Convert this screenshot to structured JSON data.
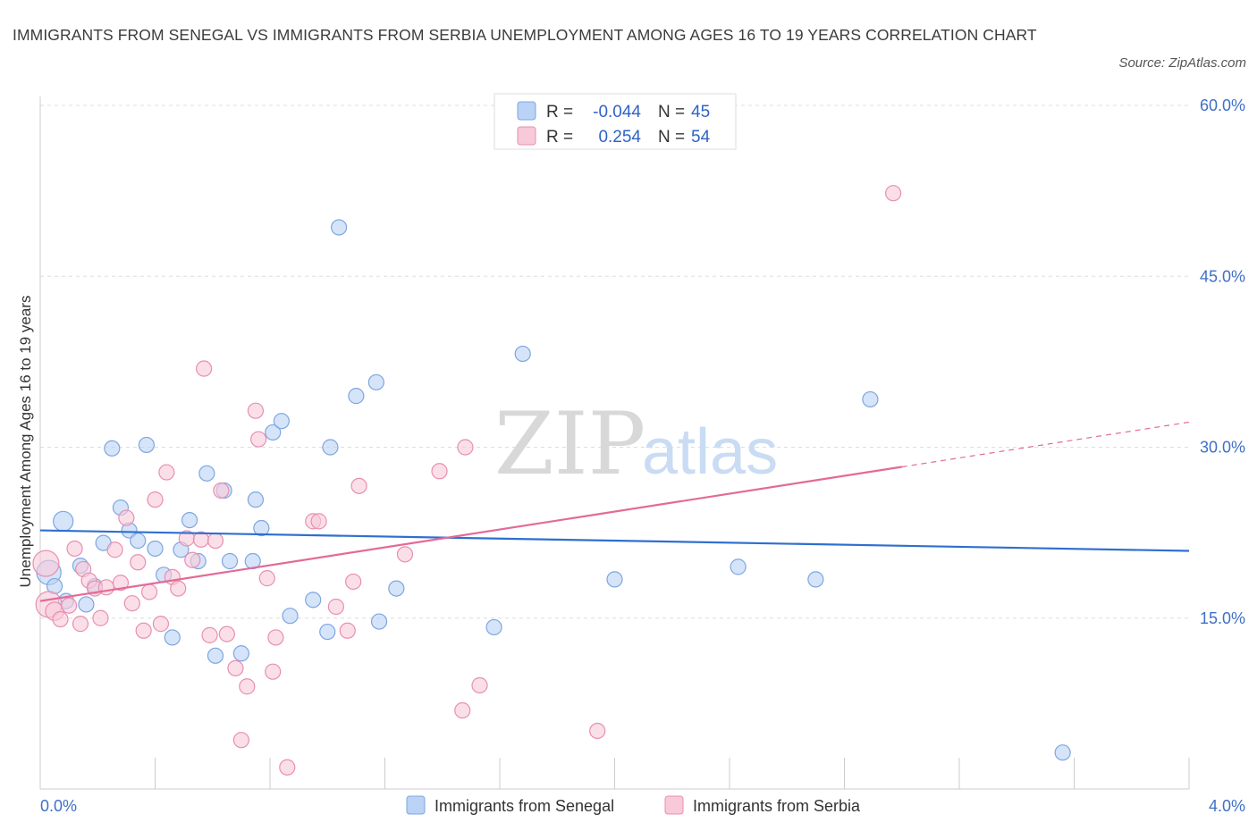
{
  "title": "IMMIGRANTS FROM SENEGAL VS IMMIGRANTS FROM SERBIA UNEMPLOYMENT AMONG AGES 16 TO 19 YEARS CORRELATION CHART",
  "source": "Source: ZipAtlas.com",
  "watermark": {
    "zip": "ZIP",
    "atlas": "atlas"
  },
  "colors": {
    "senegal_fill": "#b9d2f5",
    "senegal_stroke": "#7ea6e0",
    "senegal_line": "#2f6fcf",
    "serbia_fill": "#f8c9d8",
    "serbia_stroke": "#e88fb0",
    "serbia_line": "#e36a97",
    "axis_label": "#3f6fc6",
    "grid": "#dddddd"
  },
  "legend": {
    "r_label": "R =",
    "n_label": "N =",
    "rows": [
      {
        "r": "-0.044",
        "n": "45"
      },
      {
        "r": "0.254",
        "n": "54"
      }
    ]
  },
  "chart_data": {
    "type": "scatter",
    "title": "IMMIGRANTS FROM SENEGAL VS IMMIGRANTS FROM SERBIA UNEMPLOYMENT AMONG AGES 16 TO 19 YEARS CORRELATION CHART",
    "xlabel": "",
    "ylabel": "Unemployment Among Ages 16 to 19 years",
    "xlim": [
      0,
      4
    ],
    "ylim": [
      0,
      60
    ],
    "x_tick_labels": [
      "0.0%",
      "4.0%"
    ],
    "y_ticks": [
      15,
      30,
      45,
      60
    ],
    "y_tick_labels": [
      "15.0%",
      "30.0%",
      "45.0%",
      "60.0%"
    ],
    "legend_position": "top-center",
    "series": [
      {
        "name": "Immigrants from Senegal",
        "r": -0.044,
        "n": 45,
        "trend": {
          "x": [
            0,
            4
          ],
          "y": [
            22.7,
            20.9
          ],
          "dashed_from": null
        },
        "points": [
          [
            0.03,
            19.0,
            1.6
          ],
          [
            0.05,
            17.8,
            1.0
          ],
          [
            0.08,
            23.5,
            1.3
          ],
          [
            0.09,
            16.5,
            1.0
          ],
          [
            0.14,
            19.6,
            1.0
          ],
          [
            0.16,
            16.2,
            1.0
          ],
          [
            0.19,
            17.8,
            1.0
          ],
          [
            0.22,
            21.6,
            1.0
          ],
          [
            0.25,
            29.9,
            1.0
          ],
          [
            0.28,
            24.7,
            1.0
          ],
          [
            0.31,
            22.7,
            1.0
          ],
          [
            0.34,
            21.8,
            1.0
          ],
          [
            0.37,
            30.2,
            1.0
          ],
          [
            0.4,
            21.1,
            1.0
          ],
          [
            0.43,
            18.8,
            1.0
          ],
          [
            0.46,
            13.3,
            1.0
          ],
          [
            0.49,
            21.0,
            1.0
          ],
          [
            0.52,
            23.6,
            1.0
          ],
          [
            0.55,
            20.0,
            1.0
          ],
          [
            0.58,
            27.7,
            1.0
          ],
          [
            0.61,
            11.7,
            1.0
          ],
          [
            0.64,
            26.2,
            1.0
          ],
          [
            0.66,
            20.0,
            1.0
          ],
          [
            0.7,
            11.9,
            1.0
          ],
          [
            0.74,
            20.0,
            1.0
          ],
          [
            0.75,
            25.4,
            1.0
          ],
          [
            0.77,
            22.9,
            1.0
          ],
          [
            0.81,
            31.3,
            1.0
          ],
          [
            0.84,
            32.3,
            1.0
          ],
          [
            0.87,
            15.2,
            1.0
          ],
          [
            0.95,
            16.6,
            1.0
          ],
          [
            1.0,
            13.8,
            1.0
          ],
          [
            1.01,
            30.0,
            1.0
          ],
          [
            1.04,
            49.3,
            1.0
          ],
          [
            1.1,
            34.5,
            1.0
          ],
          [
            1.17,
            35.7,
            1.0
          ],
          [
            1.18,
            14.7,
            1.0
          ],
          [
            1.24,
            17.6,
            1.0
          ],
          [
            1.58,
            14.2,
            1.0
          ],
          [
            1.68,
            38.2,
            1.0
          ],
          [
            2.0,
            18.4,
            1.0
          ],
          [
            2.43,
            19.5,
            1.0
          ],
          [
            2.7,
            18.4,
            1.0
          ],
          [
            2.89,
            34.2,
            1.0
          ],
          [
            3.56,
            3.2,
            1.0
          ]
        ]
      },
      {
        "name": "Immigrants from Serbia",
        "r": 0.254,
        "n": 54,
        "trend": {
          "x": [
            0,
            4
          ],
          "y": [
            16.5,
            32.2
          ],
          "dashed_from": 3.0
        },
        "points": [
          [
            0.02,
            19.8,
            1.7
          ],
          [
            0.03,
            16.2,
            1.7
          ],
          [
            0.05,
            15.6,
            1.2
          ],
          [
            0.07,
            14.9,
            1.0
          ],
          [
            0.1,
            16.1,
            1.0
          ],
          [
            0.12,
            21.1,
            1.0
          ],
          [
            0.14,
            14.5,
            1.0
          ],
          [
            0.15,
            19.3,
            1.0
          ],
          [
            0.17,
            18.3,
            1.0
          ],
          [
            0.19,
            17.6,
            1.0
          ],
          [
            0.21,
            15.0,
            1.0
          ],
          [
            0.23,
            17.7,
            1.0
          ],
          [
            0.26,
            21.0,
            1.0
          ],
          [
            0.28,
            18.1,
            1.0
          ],
          [
            0.3,
            23.8,
            1.0
          ],
          [
            0.32,
            16.3,
            1.0
          ],
          [
            0.34,
            19.9,
            1.0
          ],
          [
            0.36,
            13.9,
            1.0
          ],
          [
            0.38,
            17.3,
            1.0
          ],
          [
            0.4,
            25.4,
            1.0
          ],
          [
            0.42,
            14.5,
            1.0
          ],
          [
            0.44,
            27.8,
            1.0
          ],
          [
            0.46,
            18.6,
            1.0
          ],
          [
            0.48,
            17.6,
            1.0
          ],
          [
            0.51,
            22.0,
            1.0
          ],
          [
            0.53,
            20.1,
            1.0
          ],
          [
            0.56,
            21.9,
            1.0
          ],
          [
            0.57,
            36.9,
            1.0
          ],
          [
            0.59,
            13.5,
            1.0
          ],
          [
            0.61,
            21.8,
            1.0
          ],
          [
            0.63,
            26.2,
            1.0
          ],
          [
            0.65,
            13.6,
            1.0
          ],
          [
            0.68,
            10.6,
            1.0
          ],
          [
            0.7,
            4.3,
            1.0
          ],
          [
            0.72,
            9.0,
            1.0
          ],
          [
            0.75,
            33.2,
            1.0
          ],
          [
            0.76,
            30.7,
            1.0
          ],
          [
            0.79,
            18.5,
            1.0
          ],
          [
            0.81,
            10.3,
            1.0
          ],
          [
            0.82,
            13.3,
            1.0
          ],
          [
            0.86,
            1.9,
            1.0
          ],
          [
            0.95,
            23.5,
            1.0
          ],
          [
            0.97,
            23.5,
            1.0
          ],
          [
            1.03,
            16.0,
            1.0
          ],
          [
            1.07,
            13.9,
            1.0
          ],
          [
            1.09,
            18.2,
            1.0
          ],
          [
            1.11,
            26.6,
            1.0
          ],
          [
            1.27,
            20.6,
            1.0
          ],
          [
            1.39,
            27.9,
            1.0
          ],
          [
            1.48,
            30.0,
            1.0
          ],
          [
            1.47,
            6.9,
            1.0
          ],
          [
            1.53,
            9.1,
            1.0
          ],
          [
            1.94,
            5.1,
            1.0
          ],
          [
            2.97,
            52.3,
            1.0
          ]
        ]
      }
    ]
  }
}
